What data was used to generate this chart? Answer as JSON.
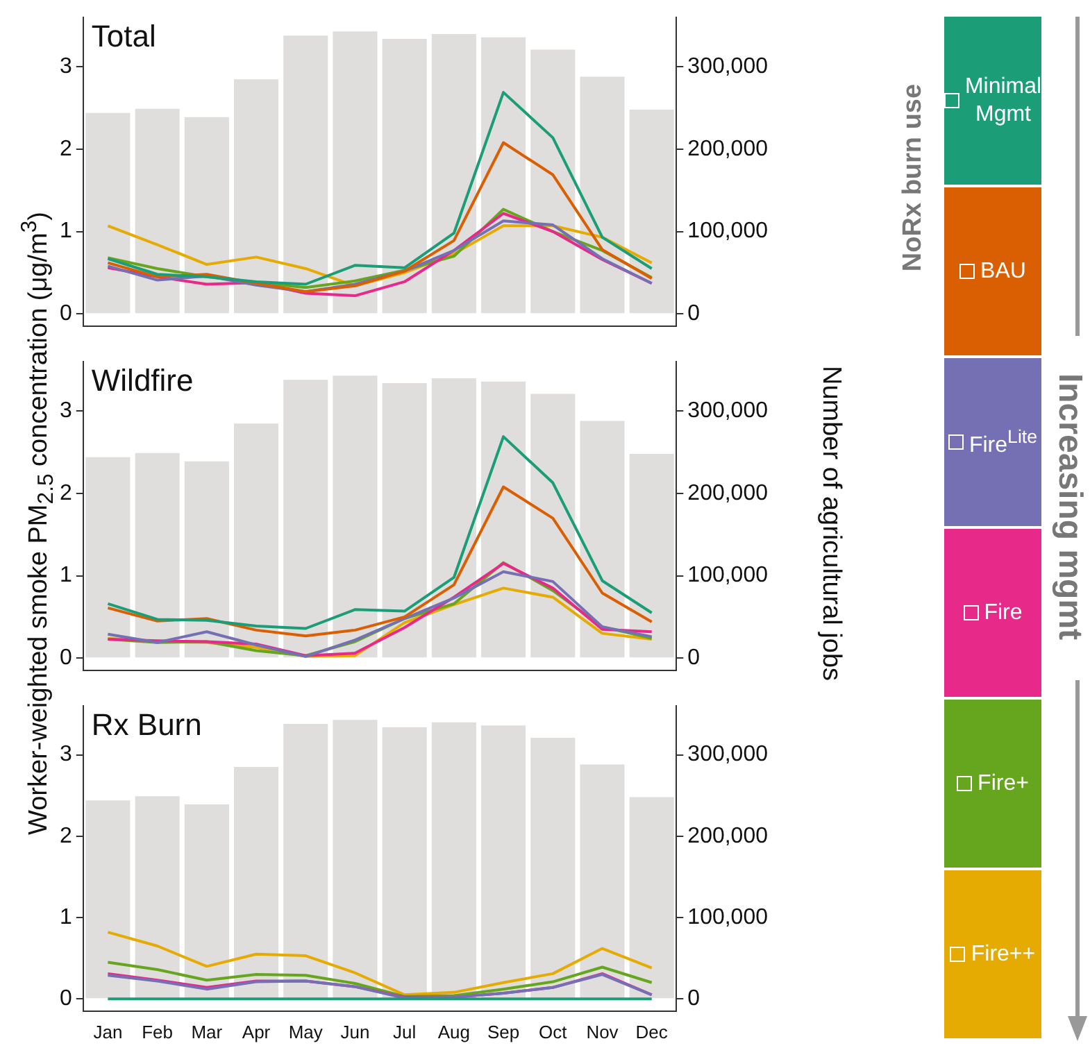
{
  "chart_data": [
    {
      "type": "line",
      "title": "Total",
      "ylabel": "Worker-weighted smoke PM$_{2.5}$ concentration (μg/m$^{3}$)",
      "y2label": "Number of agricultural jobs",
      "legend": "right",
      "tick_labels": "y",
      "annotations": [
        "NoRx burn use",
        "Increasing mgmt"
      ],
      "categories": [
        null,
        null,
        null,
        null,
        null,
        null,
        null,
        null,
        null,
        null,
        null,
        null
      ],
      "ylim": [
        -0.15,
        3.6
      ],
      "yticks": [
        0,
        1,
        2,
        3
      ],
      "y2lim": [
        -15000,
        360000
      ],
      "y2ticks": [
        {
          "value": 0,
          "label": "0"
        },
        {
          "value": 100000,
          "label": "100,000"
        },
        {
          "value": 200000,
          "label": "200,000"
        },
        {
          "value": 300000,
          "label": "300,000"
        }
      ],
      "series": [
        {
          "type": "bar",
          "axis": "y2",
          "color": "#dfdedc",
          "values": [
            244000,
            249000,
            239000,
            285000,
            338000,
            343000,
            334000,
            340000,
            336000,
            321000,
            288000,
            248000
          ]
        },
        {
          "name": "Minimal Mgmt",
          "color": "#1b9e77",
          "values": [
            0.67,
            0.48,
            0.45,
            0.39,
            0.36,
            0.59,
            0.56,
            0.98,
            2.69,
            2.14,
            0.93,
            0.55
          ]
        },
        {
          "name": "BAU",
          "color": "#d95f02",
          "values": [
            0.62,
            0.45,
            0.48,
            0.37,
            0.27,
            0.34,
            0.52,
            0.89,
            2.08,
            1.69,
            0.78,
            0.43
          ]
        },
        {
          "name": "Fire$^{Lite}$",
          "color": "#7570b3",
          "values": [
            0.58,
            0.41,
            0.46,
            0.35,
            0.27,
            0.36,
            0.52,
            0.77,
            1.13,
            1.08,
            0.67,
            0.37
          ]
        },
        {
          "name": "Fire",
          "color": "#e7298a",
          "values": [
            0.56,
            0.45,
            0.36,
            0.38,
            0.25,
            0.22,
            0.39,
            0.77,
            1.22,
            1.0,
            0.66,
            0.37
          ]
        },
        {
          "name": "Fire+",
          "color": "#66a61e",
          "values": [
            0.68,
            0.55,
            0.45,
            0.38,
            0.32,
            0.4,
            0.53,
            0.7,
            1.27,
            1.0,
            0.77,
            0.44
          ]
        },
        {
          "name": "Fire++",
          "color": "#e6ab02",
          "values": [
            1.07,
            0.84,
            0.6,
            0.69,
            0.55,
            0.34,
            0.5,
            0.73,
            1.07,
            1.07,
            0.93,
            0.62
          ]
        }
      ]
    },
    {
      "type": "line",
      "title": "Wildfire",
      "tick_labels": "y",
      "categories": [
        null,
        null,
        null,
        null,
        null,
        null,
        null,
        null,
        null,
        null,
        null,
        null
      ],
      "ylim": [
        -0.15,
        3.6
      ],
      "yticks": [
        0,
        1,
        2,
        3
      ],
      "y2lim": [
        -15000,
        360000
      ],
      "y2ticks": [
        {
          "value": 0,
          "label": "0"
        },
        {
          "value": 100000,
          "label": "100,000"
        },
        {
          "value": 200000,
          "label": "200,000"
        },
        {
          "value": 300000,
          "label": "300,000"
        }
      ],
      "series": [
        {
          "type": "bar",
          "axis": "y2",
          "color": "#dfdedc",
          "values": [
            244000,
            249000,
            239000,
            285000,
            338000,
            343000,
            334000,
            340000,
            336000,
            321000,
            288000,
            248000
          ]
        },
        {
          "color": "#1b9e77",
          "values": [
            0.66,
            0.47,
            0.46,
            0.39,
            0.36,
            0.59,
            0.57,
            0.98,
            2.69,
            2.13,
            0.94,
            0.55
          ]
        },
        {
          "color": "#d95f02",
          "values": [
            0.61,
            0.45,
            0.48,
            0.34,
            0.27,
            0.34,
            0.5,
            0.89,
            2.08,
            1.7,
            0.79,
            0.44
          ]
        },
        {
          "color": "#7570b3",
          "values": [
            0.29,
            0.19,
            0.32,
            0.16,
            0.02,
            0.22,
            0.48,
            0.73,
            1.05,
            0.93,
            0.38,
            0.26
          ]
        },
        {
          "color": "#e7298a",
          "values": [
            0.23,
            0.21,
            0.2,
            0.17,
            0.03,
            0.06,
            0.37,
            0.74,
            1.15,
            0.85,
            0.35,
            0.32
          ]
        },
        {
          "color": "#66a61e",
          "values": [
            0.23,
            0.19,
            0.2,
            0.09,
            0.03,
            0.2,
            0.48,
            0.66,
            1.16,
            0.82,
            0.38,
            0.24
          ]
        },
        {
          "color": "#e6ab02",
          "values": [
            0.24,
            0.2,
            0.19,
            0.13,
            0.02,
            0.03,
            0.43,
            0.65,
            0.85,
            0.74,
            0.3,
            0.23
          ]
        }
      ]
    },
    {
      "type": "line",
      "title": "Rx Burn",
      "categories": [
        "Jan",
        "Feb",
        "Mar",
        "Apr",
        "May",
        "Jun",
        "Jul",
        "Aug",
        "Sep",
        "Oct",
        "Nov",
        "Dec"
      ],
      "ylim": [
        -0.15,
        3.6
      ],
      "yticks": [
        0,
        1,
        2,
        3
      ],
      "y2lim": [
        -15000,
        360000
      ],
      "y2ticks": [
        {
          "value": 0,
          "label": "0"
        },
        {
          "value": 100000,
          "label": "100,000"
        },
        {
          "value": 200000,
          "label": "200,000"
        },
        {
          "value": 300000,
          "label": "300,000"
        }
      ],
      "series": [
        {
          "type": "bar",
          "axis": "y2",
          "color": "#dfdedc",
          "values": [
            244000,
            249000,
            239000,
            285000,
            338000,
            343000,
            334000,
            340000,
            336000,
            321000,
            288000,
            248000
          ]
        },
        {
          "color": "#1b9e77",
          "values": [
            0,
            0,
            0,
            0,
            0,
            0,
            0,
            0,
            0,
            0,
            0,
            0
          ]
        },
        {
          "color": "#7570b3",
          "values": [
            0.29,
            0.22,
            0.12,
            0.21,
            0.22,
            0.15,
            0.01,
            0.02,
            0.07,
            0.14,
            0.3,
            0.05
          ]
        },
        {
          "color": "#e7298a",
          "values": [
            0.31,
            0.23,
            0.14,
            0.22,
            0.22,
            0.15,
            0.02,
            0.02,
            0.07,
            0.14,
            0.31,
            0.05
          ]
        },
        {
          "color": "#66a61e",
          "values": [
            0.45,
            0.36,
            0.23,
            0.3,
            0.29,
            0.19,
            0.03,
            0.04,
            0.12,
            0.21,
            0.39,
            0.2
          ]
        },
        {
          "color": "#e6ab02",
          "values": [
            0.82,
            0.65,
            0.4,
            0.55,
            0.53,
            0.32,
            0.05,
            0.08,
            0.2,
            0.31,
            0.62,
            0.38
          ]
        }
      ]
    }
  ]
}
